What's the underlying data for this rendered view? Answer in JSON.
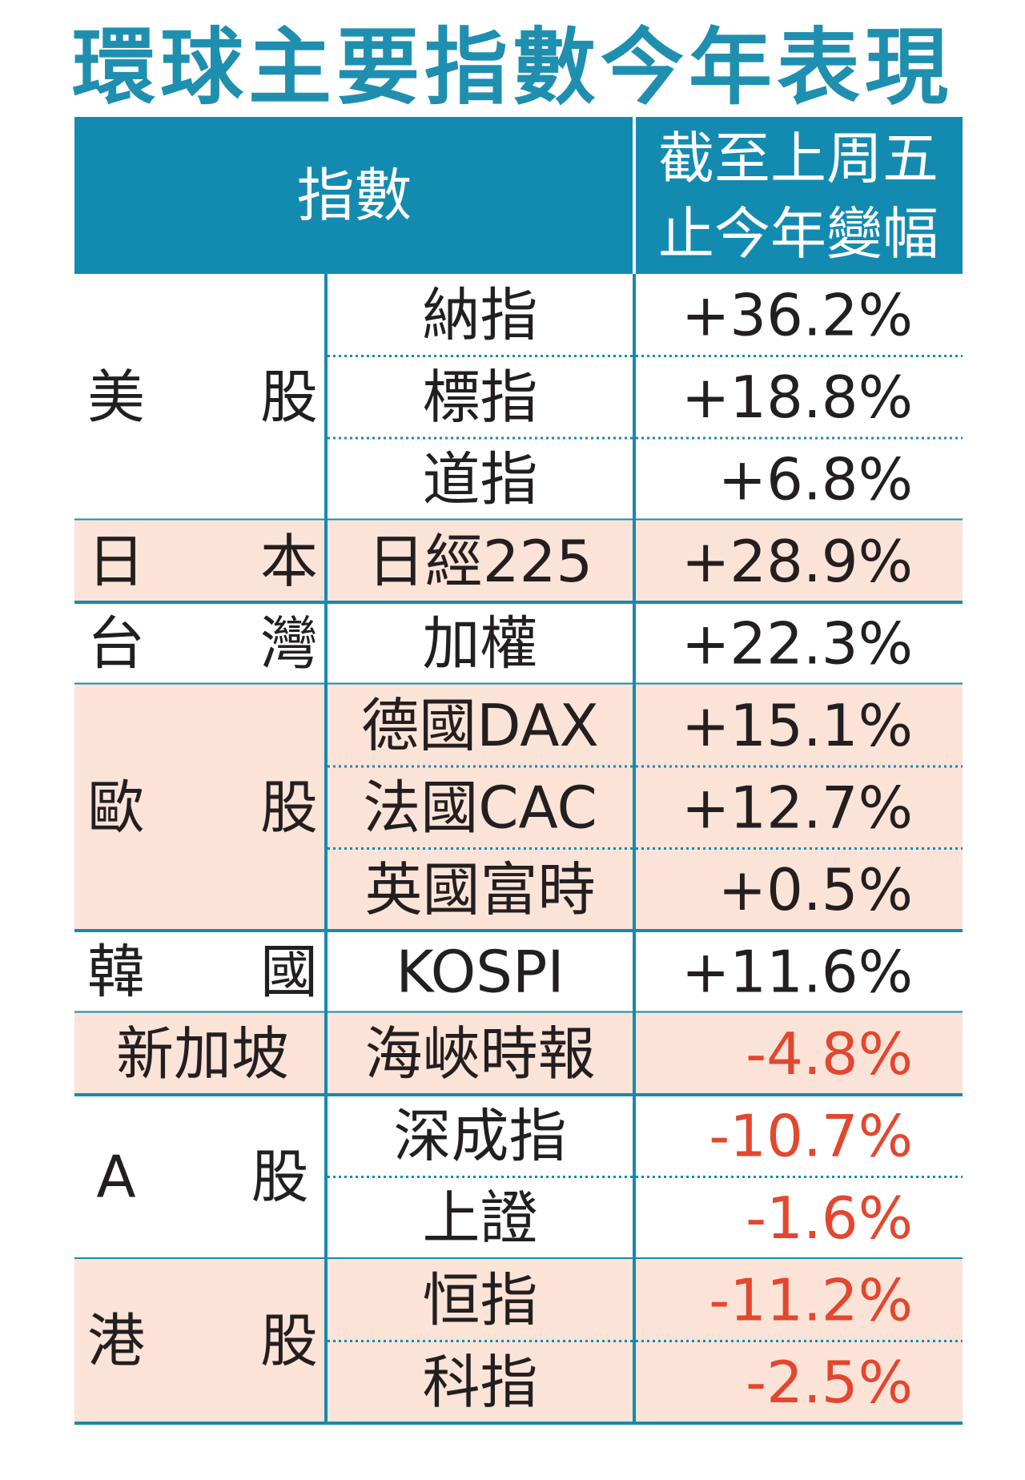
{
  "title": "環球主要指數今年表現",
  "colors": {
    "title": "#1f8fb0",
    "header_bg": "#138bb1",
    "header_text": "#ffffff",
    "rule": "#138bb1",
    "shaded_row": "#fbe3d8",
    "text": "#231f20",
    "positive": "#231f20",
    "negative": "#e2472f"
  },
  "header": {
    "index_label": "指數",
    "change_label_line1": "截至上周五",
    "change_label_line2": "止今年變幅"
  },
  "chart_data": {
    "type": "table",
    "title": "環球主要指數今年表現",
    "columns": [
      "",
      "指數",
      "截至上周五止今年變幅"
    ],
    "groups": [
      {
        "market": "美　　股",
        "shaded": false,
        "rows": [
          {
            "index": "納指",
            "change": "+36.2%",
            "value": 36.2
          },
          {
            "index": "標指",
            "change": "+18.8%",
            "value": 18.8
          },
          {
            "index": "道指",
            "change": "+6.8%",
            "value": 6.8
          }
        ]
      },
      {
        "market": "日　　本",
        "shaded": true,
        "rows": [
          {
            "index": "日經225",
            "change": "+28.9%",
            "value": 28.9
          }
        ]
      },
      {
        "market": "台　　灣",
        "shaded": false,
        "rows": [
          {
            "index": "加權",
            "change": "+22.3%",
            "value": 22.3
          }
        ]
      },
      {
        "market": "歐　　股",
        "shaded": true,
        "rows": [
          {
            "index": "德國DAX",
            "change": "+15.1%",
            "value": 15.1
          },
          {
            "index": "法國CAC",
            "change": "+12.7%",
            "value": 12.7
          },
          {
            "index": "英國富時",
            "change": "+0.5%",
            "value": 0.5
          }
        ]
      },
      {
        "market": "韓　　國",
        "shaded": false,
        "rows": [
          {
            "index": "KOSPI",
            "change": "+11.6%",
            "value": 11.6
          }
        ]
      },
      {
        "market": "新加坡",
        "shaded": true,
        "rows": [
          {
            "index": "海峽時報",
            "change": "-4.8%",
            "value": -4.8
          }
        ]
      },
      {
        "market": "A　　股",
        "shaded": false,
        "rows": [
          {
            "index": "深成指",
            "change": "-10.7%",
            "value": -10.7
          },
          {
            "index": "上證",
            "change": "-1.6%",
            "value": -1.6
          }
        ]
      },
      {
        "market": "港　　股",
        "shaded": true,
        "rows": [
          {
            "index": "恒指",
            "change": "-11.2%",
            "value": -11.2
          },
          {
            "index": "科指",
            "change": "-2.5%",
            "value": -2.5
          }
        ]
      }
    ]
  }
}
